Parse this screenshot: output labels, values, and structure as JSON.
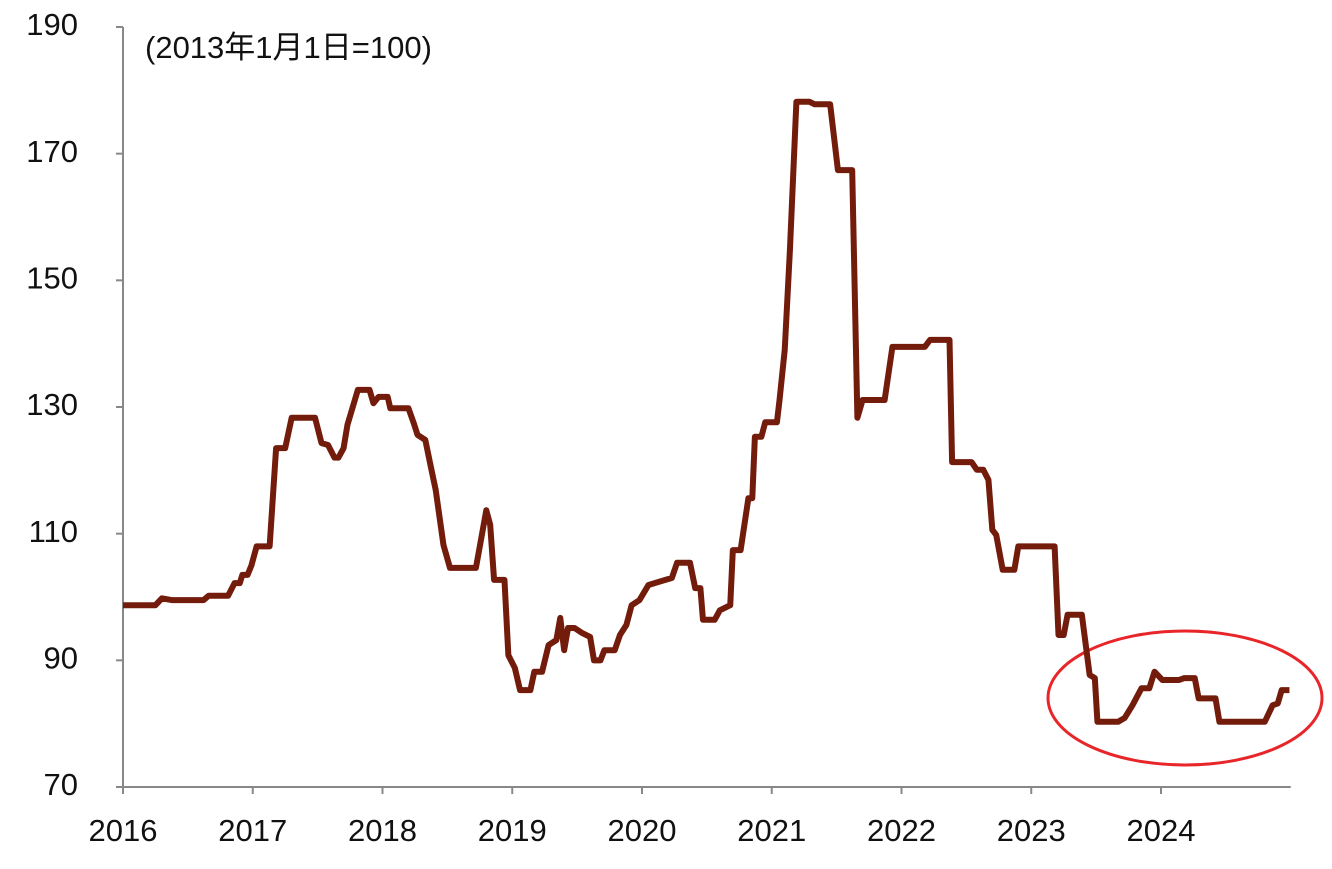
{
  "chart_data": {
    "type": "line",
    "annotation": "(2013年1月1日=100)",
    "color": "#731c0c",
    "x": [
      2016.0,
      2016.25,
      2016.3,
      2016.38,
      2016.62,
      2016.66,
      2016.81,
      2016.86,
      2016.9,
      2016.92,
      2016.96,
      2016.99,
      2017.03,
      2017.13,
      2017.18,
      2017.25,
      2017.3,
      2017.48,
      2017.53,
      2017.58,
      2017.63,
      2017.66,
      2017.7,
      2017.73,
      2017.81,
      2017.9,
      2017.93,
      2017.97,
      2018.04,
      2018.06,
      2018.2,
      2018.24,
      2018.27,
      2018.33,
      2018.37,
      2018.41,
      2018.47,
      2018.52,
      2018.72,
      2018.8,
      2018.83,
      2018.86,
      2018.94,
      2018.97,
      2019.02,
      2019.06,
      2019.14,
      2019.17,
      2019.23,
      2019.28,
      2019.34,
      2019.37,
      2019.4,
      2019.43,
      2019.48,
      2019.54,
      2019.6,
      2019.63,
      2019.68,
      2019.71,
      2019.79,
      2019.83,
      2019.88,
      2019.92,
      2019.98,
      2020.05,
      2020.18,
      2020.23,
      2020.27,
      2020.37,
      2020.41,
      2020.45,
      2020.47,
      2020.56,
      2020.6,
      2020.68,
      2020.7,
      2020.76,
      2020.82,
      2020.85,
      2020.87,
      2020.92,
      2020.95,
      2021.04,
      2021.06,
      2021.1,
      2021.14,
      2021.19,
      2021.29,
      2021.33,
      2021.45,
      2021.51,
      2021.62,
      2021.66,
      2021.7,
      2021.87,
      2021.93,
      2022.18,
      2022.22,
      2022.37,
      2022.39,
      2022.54,
      2022.58,
      2022.63,
      2022.67,
      2022.7,
      2022.73,
      2022.78,
      2022.87,
      2022.9,
      2023.18,
      2023.21,
      2023.25,
      2023.28,
      2023.39,
      2023.45,
      2023.49,
      2023.51,
      2023.67,
      2023.72,
      2023.78,
      2023.85,
      2023.91,
      2023.95,
      2024.01,
      2024.14,
      2024.18,
      2024.26,
      2024.29,
      2024.42,
      2024.45,
      2024.8,
      2024.86,
      2024.9,
      2024.93,
      2024.99
    ],
    "values": [
      98.7,
      98.7,
      99.8,
      99.5,
      99.5,
      100.2,
      100.2,
      102.2,
      102.2,
      103.5,
      103.5,
      105,
      108,
      108,
      123.5,
      123.5,
      128.3,
      128.3,
      124.3,
      124,
      122,
      122,
      123.5,
      127.2,
      132.7,
      132.7,
      130.6,
      131.6,
      131.6,
      129.8,
      129.8,
      127.5,
      125.6,
      124.8,
      120.8,
      116.9,
      108.2,
      104.6,
      104.6,
      113.7,
      111.4,
      102.7,
      102.7,
      90.8,
      88.8,
      85.3,
      85.3,
      88.2,
      88.2,
      92.4,
      93.2,
      96.7,
      91.6,
      95.1,
      95.1,
      94.3,
      93.7,
      90,
      90,
      91.6,
      91.6,
      94,
      95.6,
      98.7,
      99.5,
      101.9,
      102.7,
      103,
      105.4,
      105.4,
      101.4,
      101.4,
      96.4,
      96.4,
      97.9,
      98.7,
      107.4,
      107.4,
      115.6,
      115.6,
      125.3,
      125.3,
      127.6,
      127.6,
      131.1,
      139,
      154.8,
      178.2,
      178.2,
      177.8,
      177.8,
      167.4,
      167.4,
      128.3,
      131.1,
      131.1,
      139.5,
      139.5,
      140.6,
      140.6,
      121.3,
      121.3,
      120.1,
      120.1,
      118.5,
      110.6,
      109.8,
      104.3,
      104.3,
      108,
      108,
      94,
      94,
      97.2,
      97.2,
      87.7,
      87.2,
      80.3,
      80.3,
      80.9,
      82.9,
      85.6,
      85.6,
      88.2,
      86.9,
      86.9,
      87.2,
      87.2,
      84,
      84,
      80.3,
      80.3,
      82.9,
      83.2,
      85.3,
      85.3
    ],
    "xlim": [
      2016,
      2025
    ],
    "xticks": [
      2016,
      2017,
      2018,
      2019,
      2020,
      2021,
      2022,
      2023,
      2024
    ],
    "ylim": [
      70,
      190
    ],
    "yticks": [
      70,
      90,
      110,
      130,
      150,
      170,
      190
    ]
  }
}
